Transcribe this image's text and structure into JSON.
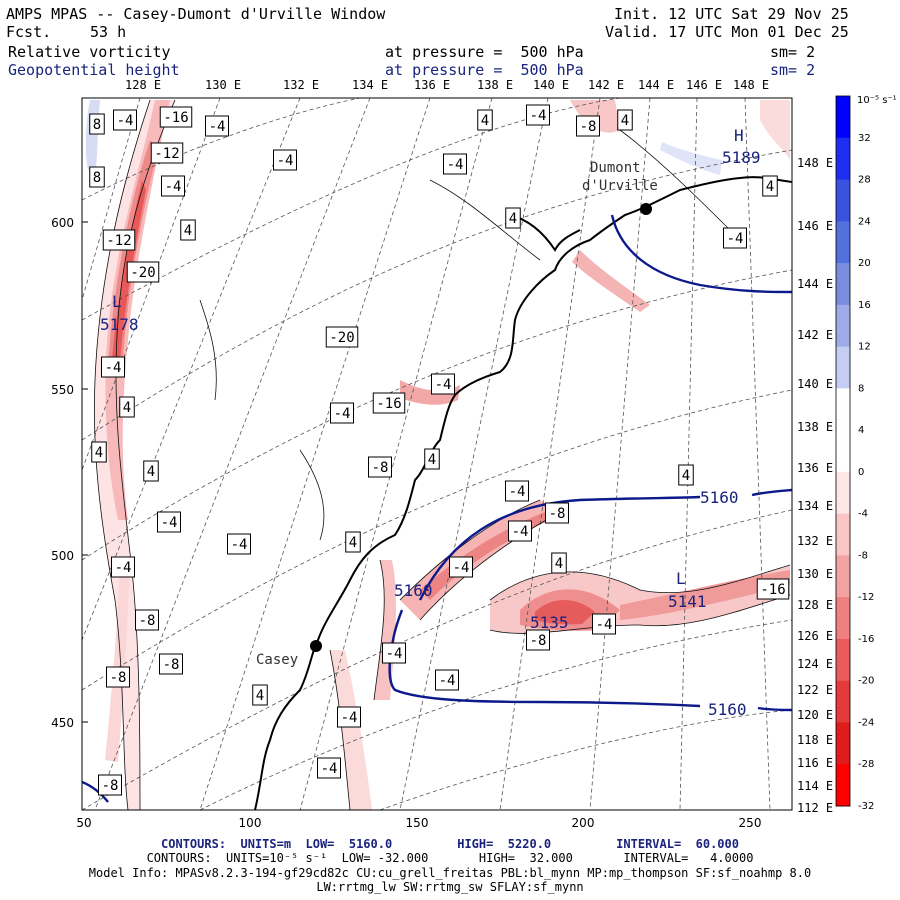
{
  "header": {
    "title": "AMPS MPAS -- Casey-Dumont d'Urville Window",
    "forecast_label": "Fcst.",
    "forecast_hours": "53 h",
    "init_label": "Init. 12 UTC Sat 29 Nov 25",
    "valid_label": "Valid. 17 UTC Mon 01 Dec 25",
    "field1_name": "Relative vorticity",
    "field1_level": "at pressure =  500 hPa",
    "field1_smooth": "sm= 2",
    "field2_name": "Geopotential height",
    "field2_level": "at pressure =  500 hPa",
    "field2_smooth": "sm= 2"
  },
  "top_lon_labels": [
    "128 E",
    "130 E",
    "132 E",
    "134 E",
    "136 E",
    "138 E",
    "140 E",
    "142 E",
    "144 E",
    "146 E",
    "148 E"
  ],
  "right_lon_labels": [
    "148 E",
    "146 E",
    "144 E",
    "142 E",
    "140 E",
    "138 E",
    "136 E",
    "134 E",
    "132 E",
    "130 E",
    "128 E",
    "126 E",
    "124 E",
    "122 E",
    "120 E",
    "118 E",
    "116 E",
    "114 E",
    "112 E"
  ],
  "left_axis_labels": [
    "600",
    "550",
    "500",
    "450"
  ],
  "bottom_axis_labels": [
    "50",
    "100",
    "150",
    "200",
    "250"
  ],
  "places": [
    {
      "name": "Dumont\nd'Urville",
      "line1": "Dumont",
      "line2": "d'Urville"
    },
    {
      "name": "Casey"
    }
  ],
  "colorbar": {
    "unit_label": "10⁻⁵ s⁻¹",
    "tick_labels": [
      "32",
      "28",
      "24",
      "20",
      "16",
      "12",
      "8",
      "4",
      "0",
      "-4",
      "-8",
      "-12",
      "-16",
      "-20",
      "-24",
      "-28",
      "-32"
    ],
    "colors": [
      "#0000ff",
      "#1e2ef0",
      "#3a52e0",
      "#5470dc",
      "#7a8ce0",
      "#9faae8",
      "#c6cdf2",
      "#ffffff",
      "#ffffff",
      "#fde6e6",
      "#f9c5c5",
      "#f4a3a3",
      "#ef8080",
      "#ea5c5c",
      "#e43a3a",
      "#de1c1c",
      "#ff0000"
    ]
  },
  "height_contour_labels": [
    "5160",
    "5160",
    "5160",
    "5178",
    "5135",
    "5189",
    "5141"
  ],
  "high_marker": "H",
  "low_marker": "L",
  "vorticity_labels": [
    "8",
    "-4",
    "-16",
    "-4",
    "4",
    "-4",
    "-8",
    "4",
    "8",
    "-12",
    "-4",
    "-4",
    "-4",
    "4",
    "-12",
    "-20",
    "4",
    "-4",
    "-4",
    "4",
    "-20",
    "-16",
    "4",
    "4",
    "-4",
    "-8",
    "-4",
    "4",
    "4",
    "-4",
    "-4",
    "-8",
    "-4",
    "-4",
    "4",
    "-4",
    "-4",
    "4",
    "-8",
    "-8",
    "-4",
    "-16",
    "-8",
    "-4",
    "4",
    "-8",
    "-4",
    "-4",
    "-4",
    "-8",
    "4"
  ],
  "footer": {
    "line1": "CONTOURS:  UNITS=m  LOW=  5160.0         HIGH=  5220.0         INTERVAL=  60.000",
    "line2": "CONTOURS:  UNITS=10⁻⁵ s⁻¹  LOW= -32.000       HIGH=  32.000       INTERVAL=   4.0000",
    "line3": "Model Info: MPASv8.2.3-194-gf29cd82c CU:cu_grell_freitas PBL:bl_mynn MP:mp_thompson SF:sf_noahmp 8.0",
    "line4": "LW:rrtmg_lw SW:rrtmg_sw SFLAY:sf_mynn"
  }
}
